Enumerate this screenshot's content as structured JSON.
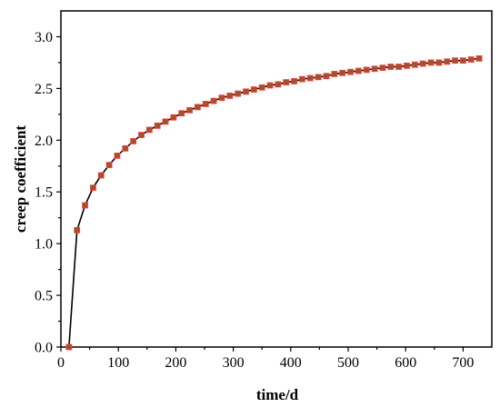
{
  "chart_data": {
    "type": "line",
    "title": "",
    "xlabel": "time/d",
    "ylabel": "creep coefficient",
    "xlim": [
      0,
      750
    ],
    "ylim": [
      0,
      3.25
    ],
    "xticks": [
      0,
      100,
      200,
      300,
      400,
      500,
      600,
      700
    ],
    "yticks": [
      0.0,
      0.5,
      1.0,
      1.5,
      2.0,
      2.5,
      3.0
    ],
    "ytick_labels": [
      "0.0",
      "0.5",
      "1.0",
      "1.5",
      "2.0",
      "2.5",
      "3.0"
    ],
    "grid": false,
    "colors": {
      "line": "#000000",
      "marker": "#a0522d",
      "marker_edge": "#ff3b3b"
    },
    "series": [
      {
        "x": [
          14,
          28,
          42,
          56,
          70,
          84,
          98,
          112,
          126,
          140,
          154,
          168,
          182,
          196,
          210,
          224,
          238,
          252,
          266,
          280,
          294,
          308,
          322,
          336,
          350,
          364,
          378,
          392,
          406,
          420,
          434,
          448,
          462,
          476,
          490,
          504,
          518,
          532,
          546,
          560,
          574,
          588,
          602,
          616,
          630,
          644,
          658,
          672,
          686,
          700,
          714,
          728
        ],
        "y": [
          0.0,
          1.13,
          1.37,
          1.54,
          1.66,
          1.76,
          1.85,
          1.92,
          1.99,
          2.05,
          2.1,
          2.14,
          2.18,
          2.22,
          2.26,
          2.29,
          2.32,
          2.35,
          2.38,
          2.41,
          2.43,
          2.45,
          2.47,
          2.49,
          2.51,
          2.53,
          2.54,
          2.56,
          2.57,
          2.59,
          2.6,
          2.61,
          2.62,
          2.64,
          2.65,
          2.66,
          2.67,
          2.68,
          2.69,
          2.7,
          2.71,
          2.71,
          2.72,
          2.73,
          2.74,
          2.75,
          2.75,
          2.76,
          2.77,
          2.77,
          2.78,
          2.79
        ]
      }
    ]
  }
}
